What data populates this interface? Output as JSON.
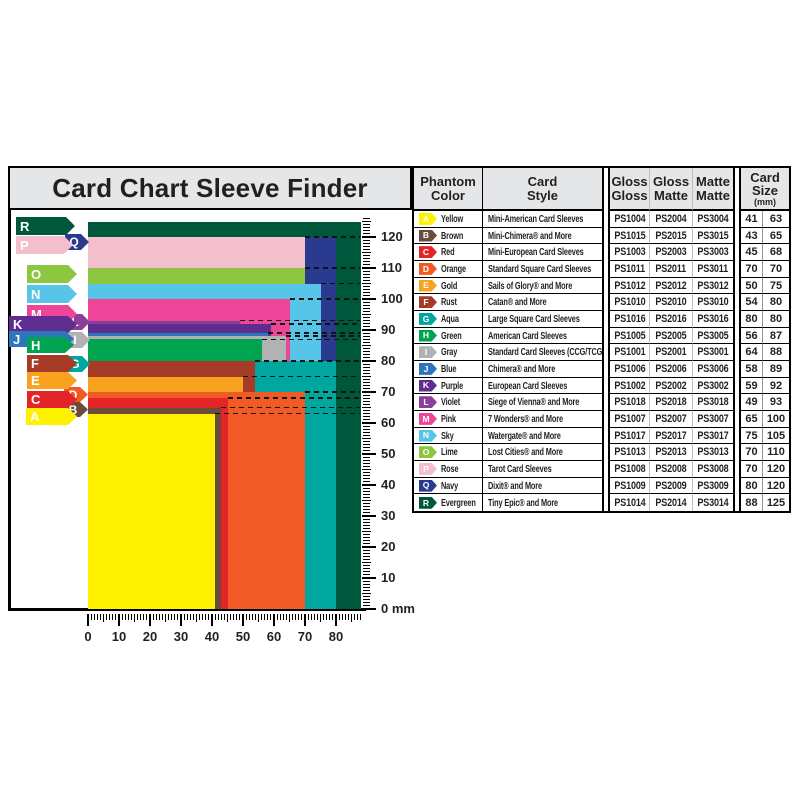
{
  "title": "Card Chart Sleeve Finder",
  "table": {
    "headers": {
      "phantom_color": "Phantom\nColor",
      "card_style": "Card\nStyle",
      "gloss_gloss": "Gloss\nGloss",
      "gloss_matte": "Gloss\nMatte",
      "matte_matte": "Matte\nMatte",
      "card_size": "Card\nSize",
      "card_size_unit": "(mm)"
    }
  },
  "chart_data": {
    "type": "nested-rectangles",
    "title": "Card Chart Sleeve Finder",
    "unit": "mm",
    "x_axis": {
      "min": 0,
      "max": 88,
      "ticks": [
        {
          "v": 0,
          "label": "0"
        },
        {
          "v": 10,
          "label": "10"
        },
        {
          "v": 20,
          "label": "20"
        },
        {
          "v": 30,
          "label": "30"
        },
        {
          "v": 40,
          "label": "40"
        },
        {
          "v": 50,
          "label": "50"
        },
        {
          "v": 60,
          "label": "60"
        },
        {
          "v": 70,
          "label": "70"
        },
        {
          "v": 80,
          "label": "80"
        }
      ]
    },
    "y_axis": {
      "min": 0,
      "max": 126,
      "ticks": [
        {
          "v": 0,
          "label": "0 mm"
        },
        {
          "v": 10,
          "label": "10"
        },
        {
          "v": 20,
          "label": "20"
        },
        {
          "v": 30,
          "label": "30"
        },
        {
          "v": 40,
          "label": "40"
        },
        {
          "v": 50,
          "label": "50"
        },
        {
          "v": 60,
          "label": "60"
        },
        {
          "v": 70,
          "label": "70"
        },
        {
          "v": 80,
          "label": "80"
        },
        {
          "v": 90,
          "label": "90"
        },
        {
          "v": 100,
          "label": "100"
        },
        {
          "v": 110,
          "label": "110"
        },
        {
          "v": 120,
          "label": "120"
        }
      ]
    },
    "draw_order": [
      "R",
      "Q",
      "P",
      "O",
      "N",
      "M",
      "L",
      "K",
      "J",
      "I",
      "H",
      "G",
      "F",
      "E",
      "D",
      "C",
      "B",
      "A"
    ],
    "cards": [
      {
        "letter": "A",
        "color": "Yellow",
        "hex": "#FFF200",
        "style": "Mini-American Card Sleeves",
        "gloss_gloss": "PS1004",
        "gloss_matte": "PS2004",
        "matte_matte": "PS3004",
        "width_mm": 41,
        "height_mm": 63
      },
      {
        "letter": "B",
        "color": "Brown",
        "hex": "#6B4B3B",
        "style": "Mini-Chimera® and More",
        "gloss_gloss": "PS1015",
        "gloss_matte": "PS2015",
        "matte_matte": "PS3015",
        "width_mm": 43,
        "height_mm": 65
      },
      {
        "letter": "C",
        "color": "Red",
        "hex": "#E42528",
        "style": "Mini-European Card Sleeves",
        "gloss_gloss": "PS1003",
        "gloss_matte": "PS2003",
        "matte_matte": "PS3003",
        "width_mm": 45,
        "height_mm": 68
      },
      {
        "letter": "D",
        "color": "Orange",
        "hex": "#F15A24",
        "style": "Standard Square Card Sleeves",
        "gloss_gloss": "PS1011",
        "gloss_matte": "PS2011",
        "matte_matte": "PS3011",
        "width_mm": 70,
        "height_mm": 70
      },
      {
        "letter": "E",
        "color": "Gold",
        "hex": "#F8A21F",
        "style": "Sails of Glory® and More",
        "gloss_gloss": "PS1012",
        "gloss_matte": "PS2012",
        "matte_matte": "PS3012",
        "width_mm": 50,
        "height_mm": 75
      },
      {
        "letter": "F",
        "color": "Rust",
        "hex": "#A63B27",
        "style": "Catan® and More",
        "gloss_gloss": "PS1010",
        "gloss_matte": "PS2010",
        "matte_matte": "PS3010",
        "width_mm": 54,
        "height_mm": 80
      },
      {
        "letter": "G",
        "color": "Aqua",
        "hex": "#00A79E",
        "style": "Large Square Card Sleeves",
        "gloss_gloss": "PS1016",
        "gloss_matte": "PS2016",
        "matte_matte": "PS3016",
        "width_mm": 80,
        "height_mm": 80
      },
      {
        "letter": "H",
        "color": "Green",
        "hex": "#00A350",
        "style": "American Card Sleeves",
        "gloss_gloss": "PS1005",
        "gloss_matte": "PS2005",
        "matte_matte": "PS3005",
        "width_mm": 56,
        "height_mm": 87
      },
      {
        "letter": "I",
        "color": "Gray",
        "hex": "#B0B2B4",
        "style": "Standard Card Sleeves (CCG/TCG)",
        "gloss_gloss": "PS1001",
        "gloss_matte": "PS2001",
        "matte_matte": "PS3001",
        "width_mm": 64,
        "height_mm": 88
      },
      {
        "letter": "J",
        "color": "Blue",
        "hex": "#2E76BC",
        "style": "Chimera® and More",
        "gloss_gloss": "PS1006",
        "gloss_matte": "PS2006",
        "matte_matte": "PS3006",
        "width_mm": 58,
        "height_mm": 89
      },
      {
        "letter": "K",
        "color": "Purple",
        "hex": "#5F2C90",
        "style": "European Card Sleeves",
        "gloss_gloss": "PS1002",
        "gloss_matte": "PS2002",
        "matte_matte": "PS3002",
        "width_mm": 59,
        "height_mm": 92
      },
      {
        "letter": "L",
        "color": "Violet",
        "hex": "#8A3F98",
        "style": "Siege of Vienna® and More",
        "gloss_gloss": "PS1018",
        "gloss_matte": "PS2018",
        "matte_matte": "PS3018",
        "width_mm": 49,
        "height_mm": 93
      },
      {
        "letter": "M",
        "color": "Pink",
        "hex": "#EE4599",
        "style": "7 Wonders® and More",
        "gloss_gloss": "PS1007",
        "gloss_matte": "PS2007",
        "matte_matte": "PS3007",
        "width_mm": 65,
        "height_mm": 100
      },
      {
        "letter": "N",
        "color": "Sky",
        "hex": "#56C5E8",
        "style": "Watergate® and More",
        "gloss_gloss": "PS1017",
        "gloss_matte": "PS2017",
        "matte_matte": "PS3017",
        "width_mm": 75,
        "height_mm": 105
      },
      {
        "letter": "O",
        "color": "Lime",
        "hex": "#8DC63F",
        "style": "Lost Cities® and More",
        "gloss_gloss": "PS1013",
        "gloss_matte": "PS2013",
        "matte_matte": "PS3013",
        "width_mm": 70,
        "height_mm": 110
      },
      {
        "letter": "P",
        "color": "Rose",
        "hex": "#F3BFCC",
        "style": "Tarot Card Sleeves",
        "gloss_gloss": "PS1008",
        "gloss_matte": "PS2008",
        "matte_matte": "PS3008",
        "width_mm": 70,
        "height_mm": 120
      },
      {
        "letter": "Q",
        "color": "Navy",
        "hex": "#2A3B8F",
        "style": "Dixit® and More",
        "gloss_gloss": "PS1009",
        "gloss_matte": "PS2009",
        "matte_matte": "PS3009",
        "width_mm": 80,
        "height_mm": 120
      },
      {
        "letter": "R",
        "color": "Evergreen",
        "hex": "#00583C",
        "style": "Tiny Epic® and More",
        "gloss_gloss": "PS1014",
        "gloss_matte": "PS2014",
        "matte_matte": "PS3014",
        "width_mm": 88,
        "height_mm": 125
      }
    ]
  }
}
